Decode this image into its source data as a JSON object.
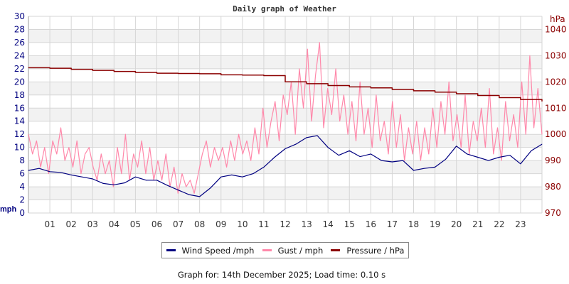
{
  "chart_data": {
    "type": "line",
    "title": "Daily graph of Weather",
    "x_tick_labels": [
      "01",
      "02",
      "03",
      "04",
      "05",
      "06",
      "07",
      "08",
      "09",
      "10",
      "11",
      "12",
      "13",
      "14",
      "15",
      "16",
      "17",
      "18",
      "19",
      "20",
      "21",
      "22",
      "23"
    ],
    "xlim_hours": [
      0,
      24
    ],
    "left_axis": {
      "label": "mph",
      "ylim": [
        0,
        30
      ],
      "ticks": [
        0,
        2,
        4,
        6,
        8,
        10,
        12,
        14,
        16,
        18,
        20,
        22,
        24,
        26,
        28,
        30
      ],
      "color": "#000080"
    },
    "right_axis": {
      "label": "hPa",
      "ylim": [
        970,
        1045
      ],
      "ticks": [
        970,
        980,
        990,
        1000,
        1010,
        1020,
        1030,
        1040
      ],
      "color": "#8b0000"
    },
    "grid": true,
    "legend_placement": "bottom",
    "series": [
      {
        "name": "Wind Speed /mph",
        "axis": "left",
        "color": "#000080",
        "x_hours": [
          0,
          0.5,
          1,
          1.5,
          2,
          2.5,
          3,
          3.5,
          4,
          4.5,
          5,
          5.5,
          6,
          6.5,
          7,
          7.5,
          8,
          8.5,
          9,
          9.5,
          10,
          10.5,
          11,
          11.5,
          12,
          12.5,
          13,
          13.5,
          14,
          14.5,
          15,
          15.5,
          16,
          16.5,
          17,
          17.5,
          18,
          18.5,
          19,
          19.5,
          20,
          20.5,
          21,
          21.5,
          22,
          22.5,
          23,
          23.5,
          24
        ],
        "values": [
          6.5,
          6.8,
          6.3,
          6.2,
          5.8,
          5.5,
          5.2,
          4.5,
          4.3,
          4.6,
          5.5,
          5.0,
          5.0,
          4.2,
          3.5,
          2.8,
          2.5,
          3.8,
          5.5,
          5.8,
          5.5,
          6.0,
          7.0,
          8.5,
          9.8,
          10.5,
          11.5,
          11.8,
          10.0,
          8.8,
          9.5,
          8.6,
          9.0,
          8.0,
          7.8,
          8.0,
          6.5,
          6.8,
          7.0,
          8.2,
          10.2,
          9.0,
          8.5,
          8.0,
          8.5,
          8.8,
          7.5,
          9.5,
          10.5
        ]
      },
      {
        "name": "Gust / mph",
        "axis": "left",
        "color": "#ff88aa",
        "values": [
          12,
          9,
          11,
          7,
          10,
          6,
          11,
          9,
          13,
          8,
          10,
          7,
          11,
          6,
          9,
          10,
          7,
          5,
          9,
          6,
          8,
          4,
          10,
          6,
          12,
          5,
          9,
          7,
          11,
          6,
          10,
          5,
          8,
          5,
          9,
          4,
          7,
          3,
          6,
          4,
          5,
          3,
          6,
          9,
          11,
          7,
          10,
          8,
          10,
          7,
          11,
          8,
          12,
          9,
          11,
          8,
          13,
          9,
          16,
          10,
          14,
          17,
          11,
          18,
          15,
          20,
          12,
          22,
          16,
          25,
          14,
          21,
          26,
          13,
          19,
          15,
          22,
          14,
          18,
          12,
          17,
          11,
          20,
          12,
          16,
          10,
          18,
          11,
          14,
          9,
          17,
          10,
          15,
          8,
          13,
          9,
          14,
          8,
          13,
          9,
          16,
          10,
          17,
          12,
          20,
          11,
          15,
          10,
          18,
          9,
          14,
          11,
          16,
          10,
          19,
          9,
          13,
          8,
          17,
          11,
          15,
          10,
          20,
          12,
          24,
          13,
          19,
          12
        ]
      },
      {
        "name": "Pressure / hPa",
        "axis": "right",
        "color": "#8b0000",
        "x_hours": [
          0,
          1,
          2,
          3,
          4,
          5,
          6,
          7,
          8,
          9,
          10,
          11,
          12,
          13,
          14,
          15,
          16,
          17,
          18,
          19,
          20,
          21,
          22,
          23,
          24
        ],
        "values": [
          1025.4,
          1025.2,
          1024.8,
          1024.4,
          1024.0,
          1023.6,
          1023.3,
          1023.2,
          1023.1,
          1022.7,
          1022.6,
          1022.4,
          1020.0,
          1019.3,
          1018.6,
          1018.1,
          1017.7,
          1017.1,
          1016.6,
          1016.1,
          1015.5,
          1014.8,
          1014.0,
          1013.3,
          1012.6
        ]
      }
    ]
  },
  "legend": {
    "wind": "Wind Speed /mph",
    "gust": "Gust / mph",
    "pressure": "Pressure / hPa"
  },
  "footer": "Graph for: 14th December 2025; Load time: 0.10 s"
}
